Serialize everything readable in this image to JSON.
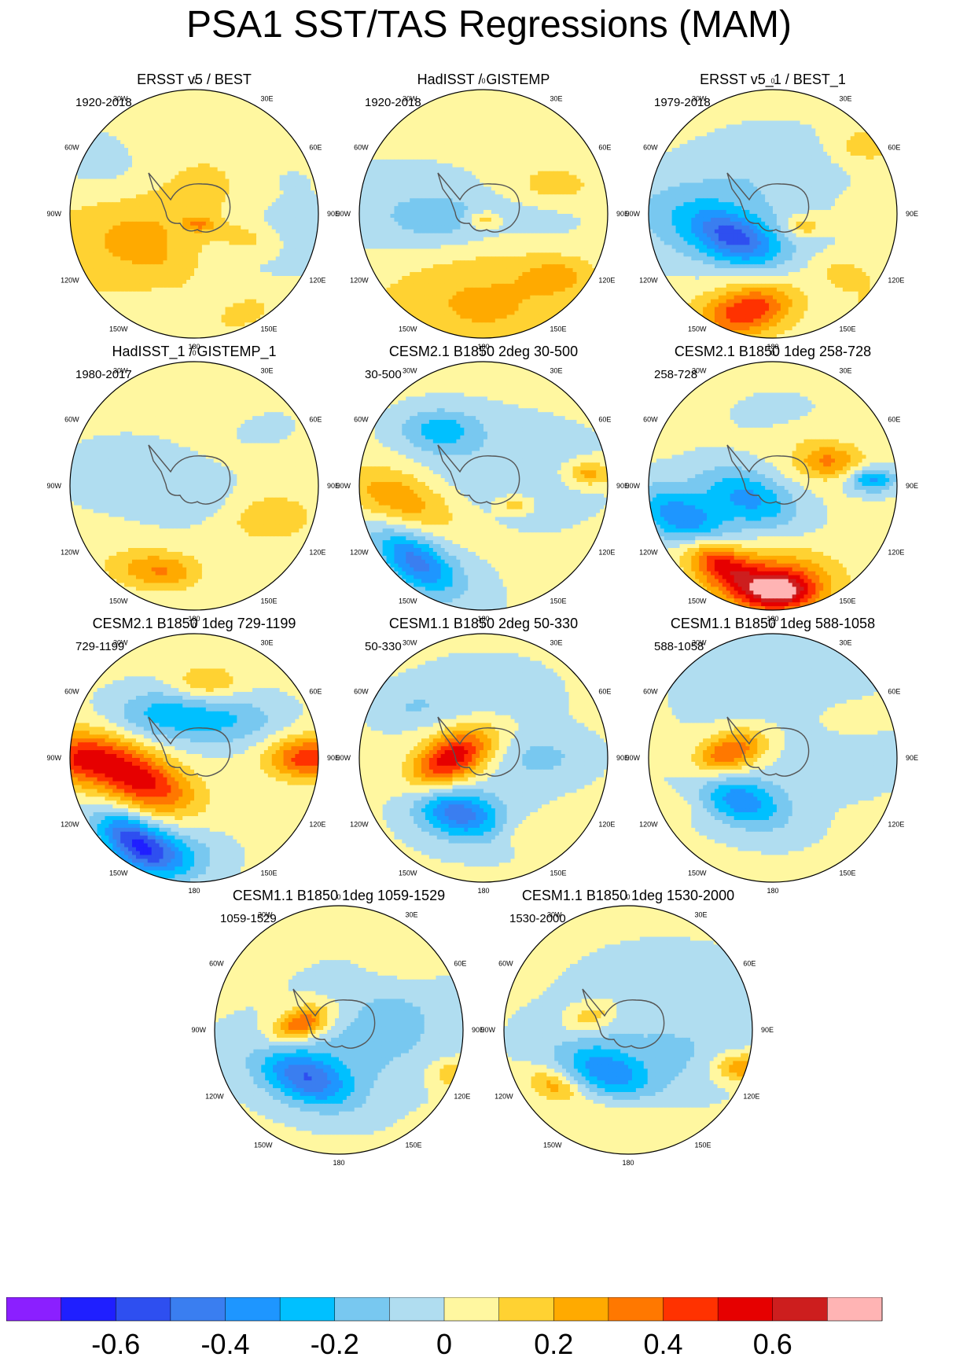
{
  "title": "PSA1 SST/TAS Regressions (MAM)",
  "chart_data": {
    "type": "heatmap",
    "projection": "south-polar stereographic",
    "longitude_labels": [
      "0",
      "30E",
      "60E",
      "90E",
      "120E",
      "150E",
      "180",
      "150W",
      "120W",
      "90W",
      "60W",
      "30W"
    ],
    "colorbar": {
      "levels": [
        -0.7,
        -0.6,
        -0.5,
        -0.4,
        -0.3,
        -0.2,
        -0.1,
        0,
        0.1,
        0.2,
        0.3,
        0.4,
        0.5,
        0.6,
        0.7
      ],
      "tick_labels": [
        "-0.6",
        "-0.4",
        "-0.2",
        "0",
        "0.2",
        "0.4",
        "0.6"
      ],
      "tick_values": [
        -0.6,
        -0.4,
        -0.2,
        0,
        0.2,
        0.4,
        0.6
      ],
      "colors": [
        "#8b1fff",
        "#1f1fff",
        "#2e4ff0",
        "#3a7ef0",
        "#1e96ff",
        "#00c0ff",
        "#78c8f0",
        "#b0ddf0",
        "#fff7a0",
        "#ffd232",
        "#ffaa00",
        "#ff7800",
        "#ff3200",
        "#e60000",
        "#cd1e1e",
        "#ffb4b4"
      ]
    },
    "panels": [
      {
        "title": "ERSST v5 / BEST",
        "period": "1920-2018",
        "features": [
          [
            -0.12,
            0.55,
            0.15,
            0.22,
            0
          ],
          [
            0.22,
            -0.35,
            0.1,
            0.33,
            -20
          ],
          [
            0.05,
            -0.25,
            0.4,
            0.12,
            30
          ],
          [
            0.15,
            0.45,
            0.2,
            0.1,
            10
          ],
          [
            0.22,
            0.05,
            0.08,
            0.04,
            0
          ],
          [
            0.12,
            0.4,
            0.8,
            0.1,
            -20
          ],
          [
            -0.1,
            -0.6,
            -0.3,
            0.2,
            20
          ],
          [
            -0.05,
            0.7,
            -0.3,
            0.12,
            0
          ]
        ]
      },
      {
        "title": "HadISST / GISTEMP",
        "period": "1920-2018",
        "features": [
          [
            0.2,
            0.0,
            0.72,
            0.32,
            0
          ],
          [
            0.15,
            0.55,
            -0.2,
            0.14,
            0
          ],
          [
            -0.12,
            -0.3,
            0.05,
            0.14,
            0
          ],
          [
            0.15,
            0.6,
            0.5,
            0.1,
            0
          ],
          [
            0.2,
            0.0,
            0.05,
            0.05,
            0
          ],
          [
            -0.1,
            -0.65,
            0.0,
            0.25,
            0
          ],
          [
            -0.1,
            0.45,
            0.0,
            0.15,
            0
          ]
        ]
      },
      {
        "title": "ERSST v5_1 / BEST_1",
        "period": "1979-2018",
        "features": [
          [
            -0.35,
            -0.3,
            0.2,
            0.12,
            20
          ],
          [
            -0.2,
            -0.3,
            0.2,
            0.25,
            20
          ],
          [
            0.3,
            -0.2,
            0.78,
            0.12,
            -15
          ],
          [
            0.2,
            -0.2,
            0.75,
            0.2,
            -15
          ],
          [
            0.2,
            0.25,
            0.1,
            0.06,
            0
          ],
          [
            0.15,
            0.6,
            0.5,
            0.1,
            20
          ],
          [
            0.2,
            0.85,
            0.75,
            0.06,
            0
          ],
          [
            0.15,
            0.75,
            -0.55,
            0.1,
            0
          ],
          [
            -0.1,
            -0.7,
            0.0,
            0.2,
            0
          ],
          [
            -0.1,
            0.0,
            -0.4,
            0.2,
            0
          ]
        ]
      },
      {
        "title": "HadISST_1 / GISTEMP_1",
        "period": "1980-2017",
        "features": [
          [
            0.15,
            -0.45,
            0.65,
            0.12,
            0
          ],
          [
            0.2,
            -0.2,
            0.7,
            0.1,
            0
          ],
          [
            0.15,
            0.6,
            0.25,
            0.15,
            0
          ],
          [
            -0.1,
            -0.55,
            -0.1,
            0.18,
            0
          ],
          [
            -0.1,
            0.0,
            0.1,
            0.15,
            0
          ],
          [
            0.1,
            0.3,
            -0.6,
            0.12,
            0
          ],
          [
            -0.1,
            0.5,
            -0.5,
            0.1,
            0
          ]
        ]
      },
      {
        "title": "CESM2.1 B1850 2deg 30-500",
        "period": "30-500",
        "features": [
          [
            -0.3,
            -0.55,
            0.62,
            0.12,
            35
          ],
          [
            -0.2,
            -0.5,
            0.55,
            0.2,
            35
          ],
          [
            0.2,
            -0.75,
            0.1,
            0.15,
            20
          ],
          [
            0.15,
            -0.5,
            0.2,
            0.2,
            30
          ],
          [
            -0.25,
            -0.35,
            -0.45,
            0.12,
            0
          ],
          [
            0.25,
            0.85,
            -0.1,
            0.07,
            0
          ],
          [
            -0.1,
            0.1,
            -0.1,
            0.3,
            0
          ],
          [
            0.2,
            0.25,
            0.15,
            0.05,
            0
          ]
        ]
      },
      {
        "title": "CESM2.1 B1850 1deg 258-728",
        "period": "258-728",
        "features": [
          [
            -0.45,
            -0.7,
            0.3,
            0.15,
            30
          ],
          [
            0.5,
            -0.45,
            0.6,
            0.12,
            30
          ],
          [
            0.45,
            0.05,
            0.85,
            0.1,
            0
          ],
          [
            0.4,
            0.0,
            0.78,
            0.18,
            0
          ],
          [
            -0.35,
            -0.2,
            0.1,
            0.15,
            20
          ],
          [
            -0.35,
            0.8,
            -0.05,
            0.07,
            0
          ],
          [
            0.3,
            0.45,
            -0.2,
            0.1,
            0
          ],
          [
            -0.25,
            0.05,
            -0.55,
            0.1,
            0
          ],
          [
            0.2,
            0.1,
            -0.5,
            0.1,
            0
          ]
        ]
      },
      {
        "title": "CESM2.1 B1850 1deg 729-1199",
        "period": "729-1199",
        "features": [
          [
            0.45,
            -0.9,
            0.0,
            0.15,
            0
          ],
          [
            0.5,
            -0.4,
            0.2,
            0.15,
            20
          ],
          [
            -0.5,
            -0.5,
            0.65,
            0.12,
            30
          ],
          [
            -0.3,
            -0.25,
            0.8,
            0.15,
            0
          ],
          [
            0.45,
            0.92,
            0.0,
            0.12,
            0
          ],
          [
            -0.25,
            -0.25,
            -0.35,
            0.15,
            0
          ],
          [
            -0.2,
            0.3,
            -0.3,
            0.15,
            0
          ],
          [
            0.2,
            0.1,
            -0.6,
            0.1,
            0
          ]
        ]
      },
      {
        "title": "CESM1.1 B1850 2deg 50-330",
        "period": "50-330",
        "features": [
          [
            -0.3,
            -0.2,
            0.45,
            0.12,
            15
          ],
          [
            -0.2,
            -0.25,
            0.4,
            0.2,
            15
          ],
          [
            0.4,
            -0.25,
            0.0,
            0.12,
            -30
          ],
          [
            0.2,
            -0.3,
            0.05,
            0.18,
            -30
          ],
          [
            -0.15,
            0.45,
            0.0,
            0.15,
            0
          ],
          [
            -0.1,
            0.0,
            -0.5,
            0.2,
            0
          ],
          [
            0.1,
            0.35,
            0.6,
            0.1,
            0
          ],
          [
            -0.1,
            -0.6,
            -0.4,
            0.12,
            0
          ]
        ]
      },
      {
        "title": "CESM1.1 B1850 1deg 588-1058",
        "period": "588-1058",
        "features": [
          [
            -0.25,
            -0.25,
            0.35,
            0.12,
            20
          ],
          [
            -0.15,
            -0.3,
            0.3,
            0.2,
            20
          ],
          [
            0.3,
            -0.35,
            -0.05,
            0.1,
            -20
          ],
          [
            0.15,
            -0.35,
            0.0,
            0.15,
            -20
          ],
          [
            -0.1,
            0.5,
            0.0,
            0.2,
            0
          ],
          [
            -0.1,
            0.0,
            -0.55,
            0.25,
            0
          ],
          [
            0.1,
            -0.85,
            0.4,
            0.08,
            0
          ],
          [
            0.1,
            0.6,
            -0.3,
            0.1,
            0
          ]
        ]
      },
      {
        "title": "CESM1.1 B1850 1deg 1059-1529",
        "period": "1059-1529",
        "features": [
          [
            -0.3,
            -0.25,
            0.4,
            0.12,
            20
          ],
          [
            -0.2,
            -0.3,
            0.35,
            0.2,
            20
          ],
          [
            0.3,
            -0.3,
            -0.05,
            0.08,
            -20
          ],
          [
            0.15,
            -0.3,
            -0.05,
            0.12,
            -20
          ],
          [
            -0.1,
            0.4,
            -0.2,
            0.25,
            0
          ],
          [
            -0.1,
            0.3,
            0.15,
            0.25,
            0
          ],
          [
            0.2,
            0.95,
            0.35,
            0.08,
            0
          ],
          [
            0.1,
            0.55,
            -0.55,
            0.12,
            0
          ]
        ]
      },
      {
        "title": "CESM1.1 B1850 1deg 1530-2000",
        "period": "1530-2000",
        "features": [
          [
            -0.25,
            -0.15,
            0.35,
            0.12,
            20
          ],
          [
            -0.15,
            -0.2,
            0.3,
            0.22,
            20
          ],
          [
            0.25,
            -0.6,
            0.45,
            0.08,
            20
          ],
          [
            0.2,
            -0.3,
            -0.1,
            0.08,
            -20
          ],
          [
            0.3,
            0.9,
            0.3,
            0.08,
            0
          ],
          [
            -0.1,
            0.3,
            -0.3,
            0.25,
            0
          ],
          [
            -0.1,
            0.5,
            0.2,
            0.2,
            0
          ],
          [
            0.1,
            0.0,
            0.7,
            0.15,
            0
          ]
        ]
      }
    ]
  }
}
